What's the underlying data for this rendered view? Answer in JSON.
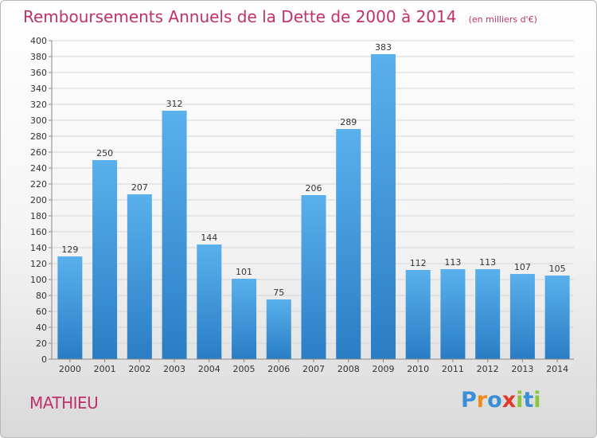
{
  "colors": {
    "title": "#c0306c",
    "bar_top": "#5ab0ec",
    "bar_bottom": "#2a7dc4"
  },
  "commune": "MATHIEU",
  "logo": {
    "text": "Proxiti",
    "letters": [
      {
        "ch": "P",
        "color": "#3a8fd6"
      },
      {
        "ch": "r",
        "color": "#f08a1c"
      },
      {
        "ch": "o",
        "color": "#3a8fd6"
      },
      {
        "ch": "x",
        "color": "#e23a2a"
      },
      {
        "ch": "i",
        "color": "#8cc63f"
      },
      {
        "ch": "t",
        "color": "#3a8fd6"
      },
      {
        "ch": "i",
        "color": "#8cc63f"
      }
    ]
  },
  "chart_data": {
    "type": "bar",
    "title": "Remboursements Annuels de la Dette de 2000 à 2014",
    "unit_label": "(en milliers d'€)",
    "xlabel": "",
    "ylabel": "",
    "ylim": [
      0,
      400
    ],
    "ytick_step": 20,
    "grid": true,
    "categories": [
      "2000",
      "2001",
      "2002",
      "2003",
      "2004",
      "2005",
      "2006",
      "2007",
      "2008",
      "2009",
      "2010",
      "2011",
      "2012",
      "2013",
      "2014"
    ],
    "values": [
      129,
      250,
      207,
      312,
      144,
      101,
      75,
      206,
      289,
      383,
      112,
      113,
      113,
      107,
      105
    ]
  }
}
